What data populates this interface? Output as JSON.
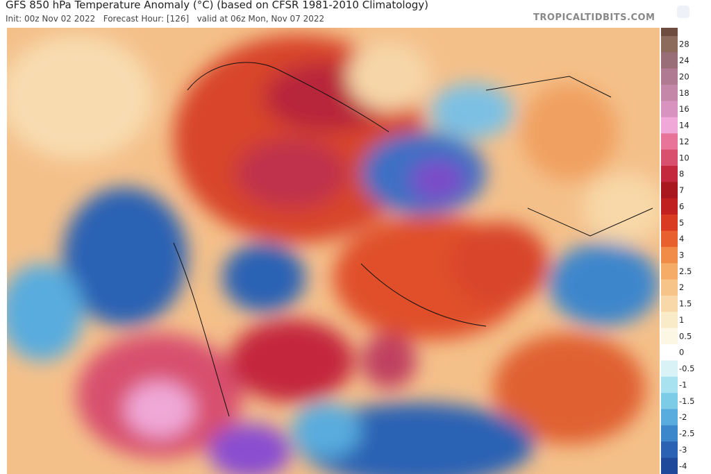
{
  "header": {
    "title": "GFS 850 hPa Temperature Anomaly (°C) (based on CFSR 1981-2010 Climatology)",
    "subtitle": "Init: 00z Nov 02 2022   Forecast Hour: [126]   valid at 06z Mon, Nov 07 2022",
    "watermark": "TROPICALTIDBITS.COM"
  },
  "colorbar": {
    "ticks": [
      28,
      24,
      20,
      18,
      16,
      14,
      12,
      10,
      8,
      7,
      6,
      5,
      4,
      3,
      2.5,
      2,
      1.5,
      1,
      0.5,
      0,
      -0.5,
      -1,
      -1.5,
      -2,
      -2.5,
      -3,
      -4
    ],
    "colors": [
      "#8c6a5c",
      "#9a6e78",
      "#b07a92",
      "#c487a8",
      "#d993c0",
      "#f0a8d8",
      "#e8749a",
      "#d8506e",
      "#c4283c",
      "#a8181e",
      "#c02020",
      "#d83a22",
      "#e8602e",
      "#f08c48",
      "#f4ac66",
      "#f6c488",
      "#f8d8a8",
      "#faebc8",
      "#fcf6e4",
      "#ffffff",
      "#d8f2f6",
      "#a8e2f0",
      "#7ccce8",
      "#58acde",
      "#3c86cc",
      "#2c62b4",
      "#1f4a9c"
    ]
  }
}
